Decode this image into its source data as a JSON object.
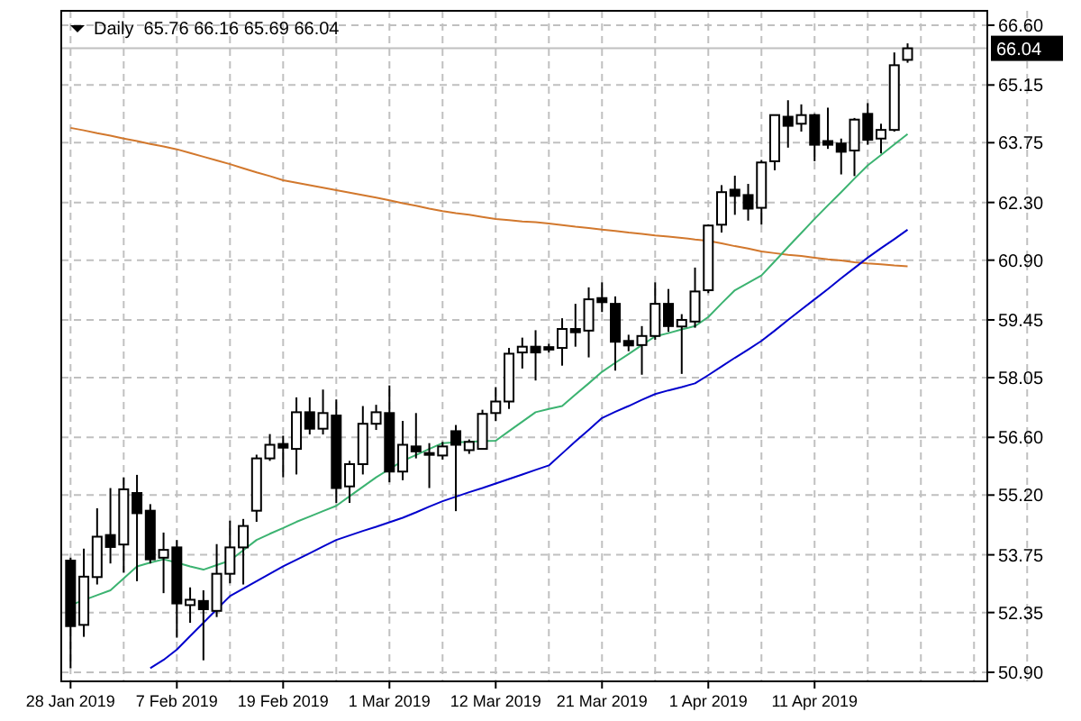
{
  "chart_data": {
    "type": "candlestick",
    "title": "Daily  65.76 66.16 65.69 66.04",
    "categories": [
      "28 Jan 2019",
      null,
      null,
      null,
      null,
      null,
      null,
      null,
      "7 Feb 2019",
      null,
      null,
      null,
      null,
      null,
      null,
      null,
      "19 Feb 2019",
      null,
      null,
      null,
      null,
      null,
      null,
      null,
      "1 Mar 2019",
      null,
      null,
      null,
      null,
      null,
      null,
      null,
      "12 Mar 2019",
      null,
      null,
      null,
      null,
      null,
      null,
      null,
      "21 Mar 2019",
      null,
      null,
      null,
      null,
      null,
      null,
      null,
      "1 Apr 2019",
      null,
      null,
      null,
      null,
      null,
      null,
      null,
      "11 Apr 2019",
      null,
      null,
      null,
      null,
      null,
      null,
      null
    ],
    "ohlc": [
      [
        53.61,
        53.68,
        51.0,
        52.02
      ],
      [
        52.05,
        53.9,
        51.76,
        53.22
      ],
      [
        53.21,
        54.88,
        53.03,
        54.19
      ],
      [
        54.23,
        55.37,
        53.54,
        53.94
      ],
      [
        54.0,
        55.63,
        53.32,
        55.34
      ],
      [
        55.25,
        55.69,
        53.11,
        54.76
      ],
      [
        54.82,
        54.98,
        53.54,
        53.64
      ],
      [
        53.68,
        54.29,
        52.82,
        53.87
      ],
      [
        53.93,
        54.11,
        51.74,
        52.57
      ],
      [
        52.53,
        52.96,
        52.1,
        52.66
      ],
      [
        52.63,
        52.89,
        51.19,
        52.43
      ],
      [
        52.39,
        54.01,
        52.24,
        53.29
      ],
      [
        53.29,
        54.58,
        53.06,
        53.93
      ],
      [
        53.93,
        54.62,
        53.03,
        54.45
      ],
      [
        54.82,
        56.18,
        54.55,
        56.09
      ],
      [
        56.09,
        56.68,
        56.03,
        56.42
      ],
      [
        56.44,
        56.64,
        55.63,
        56.35
      ],
      [
        56.32,
        57.57,
        55.7,
        57.21
      ],
      [
        57.21,
        57.57,
        56.67,
        56.81
      ],
      [
        56.81,
        57.76,
        56.67,
        57.19
      ],
      [
        57.13,
        57.52,
        55.01,
        55.37
      ],
      [
        55.41,
        56.03,
        55.01,
        55.95
      ],
      [
        55.95,
        57.36,
        55.7,
        56.93
      ],
      [
        56.93,
        57.39,
        56.78,
        57.21
      ],
      [
        57.19,
        57.86,
        55.51,
        55.77
      ],
      [
        55.77,
        57.0,
        55.56,
        56.42
      ],
      [
        56.38,
        57.19,
        56.09,
        56.26
      ],
      [
        56.22,
        56.46,
        55.37,
        56.18
      ],
      [
        56.16,
        56.49,
        56.06,
        56.38
      ],
      [
        56.75,
        56.9,
        54.81,
        56.42
      ],
      [
        56.29,
        56.55,
        56.2,
        56.49
      ],
      [
        56.32,
        57.27,
        56.32,
        57.17
      ],
      [
        57.19,
        57.82,
        57.0,
        57.47
      ],
      [
        57.47,
        58.77,
        57.29,
        58.63
      ],
      [
        58.66,
        59.02,
        58.27,
        58.8
      ],
      [
        58.8,
        59.2,
        57.98,
        58.66
      ],
      [
        58.79,
        58.87,
        58.66,
        58.73
      ],
      [
        58.77,
        59.49,
        58.34,
        59.23
      ],
      [
        59.23,
        59.84,
        58.8,
        59.15
      ],
      [
        59.19,
        60.24,
        58.54,
        59.95
      ],
      [
        59.98,
        60.36,
        59.64,
        59.88
      ],
      [
        59.84,
        60.02,
        58.22,
        58.92
      ],
      [
        58.94,
        59.09,
        58.69,
        58.83
      ],
      [
        58.84,
        59.3,
        58.12,
        59.06
      ],
      [
        59.06,
        60.36,
        58.97,
        59.84
      ],
      [
        59.84,
        60.2,
        59.16,
        59.3
      ],
      [
        59.29,
        59.59,
        58.14,
        59.45
      ],
      [
        59.41,
        60.72,
        59.26,
        60.14
      ],
      [
        60.17,
        61.77,
        60.1,
        61.74
      ],
      [
        61.76,
        62.72,
        61.57,
        62.55
      ],
      [
        62.61,
        62.95,
        62.0,
        62.46
      ],
      [
        62.48,
        62.75,
        61.86,
        62.15
      ],
      [
        62.17,
        63.33,
        61.76,
        63.27
      ],
      [
        63.3,
        64.42,
        63.08,
        64.42
      ],
      [
        64.38,
        64.78,
        63.63,
        64.16
      ],
      [
        64.21,
        64.68,
        64.02,
        64.42
      ],
      [
        64.42,
        64.45,
        63.3,
        63.7
      ],
      [
        63.79,
        64.6,
        63.6,
        63.7
      ],
      [
        63.73,
        63.85,
        62.98,
        63.53
      ],
      [
        63.56,
        64.35,
        62.94,
        64.31
      ],
      [
        64.45,
        64.71,
        63.7,
        63.82
      ],
      [
        63.85,
        64.21,
        63.49,
        64.06
      ],
      [
        64.06,
        65.94,
        64.02,
        65.63
      ],
      [
        65.76,
        66.16,
        65.69,
        66.04
      ]
    ],
    "series": [
      {
        "type": "line",
        "color": "#d2782d",
        "values": [
          64.11,
          64.05,
          63.98,
          63.92,
          63.85,
          63.79,
          63.72,
          63.66,
          63.59,
          63.5,
          63.41,
          63.32,
          63.23,
          63.13,
          63.03,
          62.94,
          62.84,
          62.78,
          62.72,
          62.66,
          62.6,
          62.54,
          62.48,
          62.42,
          62.35,
          62.28,
          62.22,
          62.15,
          62.09,
          62.04,
          62.0,
          61.95,
          61.9,
          61.87,
          61.84,
          61.82,
          61.79,
          61.75,
          61.71,
          61.68,
          61.64,
          61.61,
          61.57,
          61.54,
          61.5,
          61.47,
          61.44,
          61.4,
          61.37,
          61.31,
          61.24,
          61.18,
          61.11,
          61.07,
          61.03,
          61.0,
          60.96,
          60.92,
          60.89,
          60.85,
          60.82,
          60.8,
          60.77,
          60.75
        ]
      },
      {
        "type": "line",
        "color": "#0000cd",
        "values": [
          null,
          null,
          null,
          null,
          null,
          null,
          51.0,
          51.2,
          51.45,
          51.78,
          52.1,
          52.43,
          52.75,
          52.93,
          53.11,
          53.29,
          53.47,
          53.63,
          53.79,
          53.95,
          54.11,
          54.22,
          54.33,
          54.43,
          54.54,
          54.65,
          54.78,
          54.92,
          55.05,
          55.16,
          55.27,
          55.37,
          55.48,
          55.59,
          55.7,
          55.81,
          55.92,
          56.21,
          56.5,
          56.78,
          57.07,
          57.22,
          57.36,
          57.51,
          57.65,
          57.74,
          57.82,
          57.91,
          58.11,
          58.32,
          58.53,
          58.73,
          58.94,
          59.19,
          59.45,
          59.7,
          59.95,
          60.2,
          60.46,
          60.71,
          60.96,
          61.19,
          61.41,
          61.64
        ]
      },
      {
        "type": "line",
        "color": "#3cb371",
        "values": [
          52.53,
          52.65,
          52.77,
          52.89,
          53.18,
          53.47,
          53.56,
          53.64,
          53.56,
          53.47,
          53.39,
          53.5,
          53.61,
          53.86,
          54.11,
          54.26,
          54.4,
          54.55,
          54.68,
          54.81,
          54.94,
          55.17,
          55.4,
          55.63,
          55.83,
          56.03,
          56.17,
          56.32,
          56.46,
          56.48,
          56.49,
          56.51,
          56.52,
          56.75,
          56.98,
          57.21,
          57.29,
          57.36,
          57.64,
          57.91,
          58.19,
          58.41,
          58.62,
          58.84,
          59.05,
          59.13,
          59.22,
          59.3,
          59.52,
          59.85,
          60.17,
          60.35,
          60.53,
          60.87,
          61.22,
          61.56,
          61.9,
          62.23,
          62.55,
          62.88,
          63.2,
          63.45,
          63.71,
          63.96
        ]
      }
    ],
    "ylim": [
      50.68,
      66.95
    ],
    "yticks": [
      {
        "value": 66.6,
        "label": "66.60"
      },
      {
        "value": 65.15,
        "label": "65.15"
      },
      {
        "value": 63.75,
        "label": "63.75"
      },
      {
        "value": 62.3,
        "label": "62.30"
      },
      {
        "value": 60.9,
        "label": "60.90"
      },
      {
        "value": 59.45,
        "label": "59.45"
      },
      {
        "value": 58.05,
        "label": "58.05"
      },
      {
        "value": 56.6,
        "label": "56.60"
      },
      {
        "value": 55.2,
        "label": "55.20"
      },
      {
        "value": 53.75,
        "label": "53.75"
      },
      {
        "value": 52.35,
        "label": "52.35"
      },
      {
        "value": 50.9,
        "label": "50.90"
      }
    ],
    "ref_lines": [
      {
        "axis": "y",
        "value": 66.04,
        "label": "66.04",
        "color": "#c0c0c0"
      }
    ],
    "grid": true
  }
}
